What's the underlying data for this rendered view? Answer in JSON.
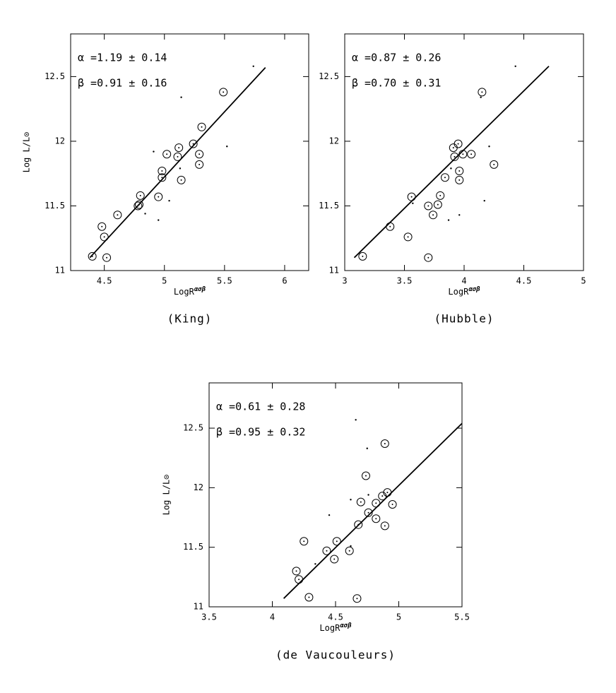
{
  "chart_data": [
    {
      "type": "scatter",
      "caption": "(King)",
      "xlabel": "LogR",
      "xlabel_sup": "ασβ",
      "ylabel": "Log L/L⊙",
      "alpha_text": "α =1.19 ± 0.14",
      "beta_text": "β =0.91 ± 0.16",
      "xlim": [
        4.22,
        6.2
      ],
      "ylim": [
        11,
        12.83
      ],
      "xticks": [
        4.5,
        5,
        5.5,
        6
      ],
      "yticks": [
        11,
        11.5,
        12,
        12.5
      ],
      "series": [
        {
          "marker": "circled",
          "color": "#000000",
          "x": [
            4.4,
            4.48,
            4.5,
            4.52,
            4.61,
            4.78,
            4.79,
            4.8,
            4.95,
            4.98,
            4.98,
            5.02,
            5.11,
            5.12,
            5.14,
            5.24,
            5.29,
            5.29,
            5.31,
            5.49
          ],
          "values": [
            11.11,
            11.34,
            11.26,
            11.1,
            11.43,
            11.5,
            11.51,
            11.58,
            11.57,
            11.72,
            11.77,
            11.9,
            11.88,
            11.95,
            11.7,
            11.98,
            11.82,
            11.9,
            12.11,
            12.38
          ]
        },
        {
          "marker": "dot",
          "color": "#000000",
          "x": [
            5.74,
            5.14,
            4.91,
            5.52,
            5.13,
            5.04,
            4.84,
            4.95
          ],
          "values": [
            12.58,
            12.34,
            11.92,
            11.96,
            11.79,
            11.54,
            11.44,
            11.39
          ]
        },
        {
          "marker": "line",
          "color": "#000000",
          "x": [
            4.38,
            5.84
          ],
          "values": [
            11.1,
            12.57
          ]
        }
      ]
    },
    {
      "type": "scatter",
      "caption": "(Hubble)",
      "xlabel": "LogR",
      "xlabel_sup": "ασβ",
      "alpha_text": "α =0.87 ± 0.26",
      "beta_text": "β =0.70 ± 0.31",
      "xlim": [
        3,
        5
      ],
      "ylim": [
        11,
        12.83
      ],
      "xticks": [
        3,
        3.5,
        4,
        4.5,
        5
      ],
      "yticks": [
        11,
        11.5,
        12,
        12.5
      ],
      "series": [
        {
          "marker": "circled",
          "color": "#000000",
          "x": [
            3.15,
            3.38,
            3.53,
            3.56,
            3.7,
            3.7,
            3.74,
            3.78,
            3.8,
            3.84,
            3.91,
            3.92,
            3.95,
            3.96,
            3.96,
            3.99,
            4.06,
            4.15,
            4.25
          ],
          "values": [
            11.11,
            11.34,
            11.26,
            11.57,
            11.1,
            11.5,
            11.43,
            11.51,
            11.58,
            11.72,
            11.95,
            11.88,
            11.98,
            11.77,
            11.7,
            11.9,
            11.9,
            12.38,
            11.82
          ]
        },
        {
          "marker": "dot",
          "color": "#000000",
          "x": [
            4.43,
            4.14,
            4.21,
            3.57,
            3.87,
            4.17,
            3.89,
            3.96
          ],
          "values": [
            12.58,
            12.34,
            11.96,
            11.52,
            11.39,
            11.54,
            11.79,
            11.43
          ]
        },
        {
          "marker": "line",
          "color": "#000000",
          "x": [
            3.08,
            4.71
          ],
          "values": [
            11.1,
            12.58
          ]
        }
      ]
    },
    {
      "type": "scatter",
      "caption": "(de Vaucouleurs)",
      "xlabel": "LogR",
      "xlabel_sup": "ασβ",
      "ylabel": "Log L/L⊙",
      "alpha_text": "α =0.61 ± 0.28",
      "beta_text": "β =0.95 ± 0.32",
      "xlim": [
        3.5,
        5.5
      ],
      "ylim": [
        11,
        12.88
      ],
      "xticks": [
        3.5,
        4,
        4.5,
        5,
        5.5
      ],
      "yticks": [
        11,
        11.5,
        12,
        12.5
      ],
      "series": [
        {
          "marker": "circled",
          "color": "#000000",
          "x": [
            4.19,
            4.21,
            4.25,
            4.29,
            4.43,
            4.49,
            4.51,
            4.61,
            4.68,
            4.67,
            4.7,
            4.74,
            4.76,
            4.82,
            4.82,
            4.87,
            4.89,
            4.89,
            4.91,
            4.95
          ],
          "values": [
            11.3,
            11.23,
            11.55,
            11.08,
            11.47,
            11.4,
            11.55,
            11.47,
            11.69,
            11.07,
            11.88,
            12.1,
            11.79,
            11.87,
            11.74,
            11.93,
            12.37,
            11.68,
            11.96,
            11.86
          ]
        },
        {
          "marker": "dot",
          "color": "#000000",
          "x": [
            4.66,
            4.75,
            4.76,
            4.62,
            4.45,
            4.34,
            4.62
          ],
          "values": [
            12.57,
            12.33,
            11.94,
            11.9,
            11.77,
            11.36,
            11.51
          ]
        },
        {
          "marker": "line",
          "color": "#000000",
          "x": [
            4.09,
            5.5
          ],
          "values": [
            11.07,
            12.54
          ]
        }
      ]
    }
  ]
}
